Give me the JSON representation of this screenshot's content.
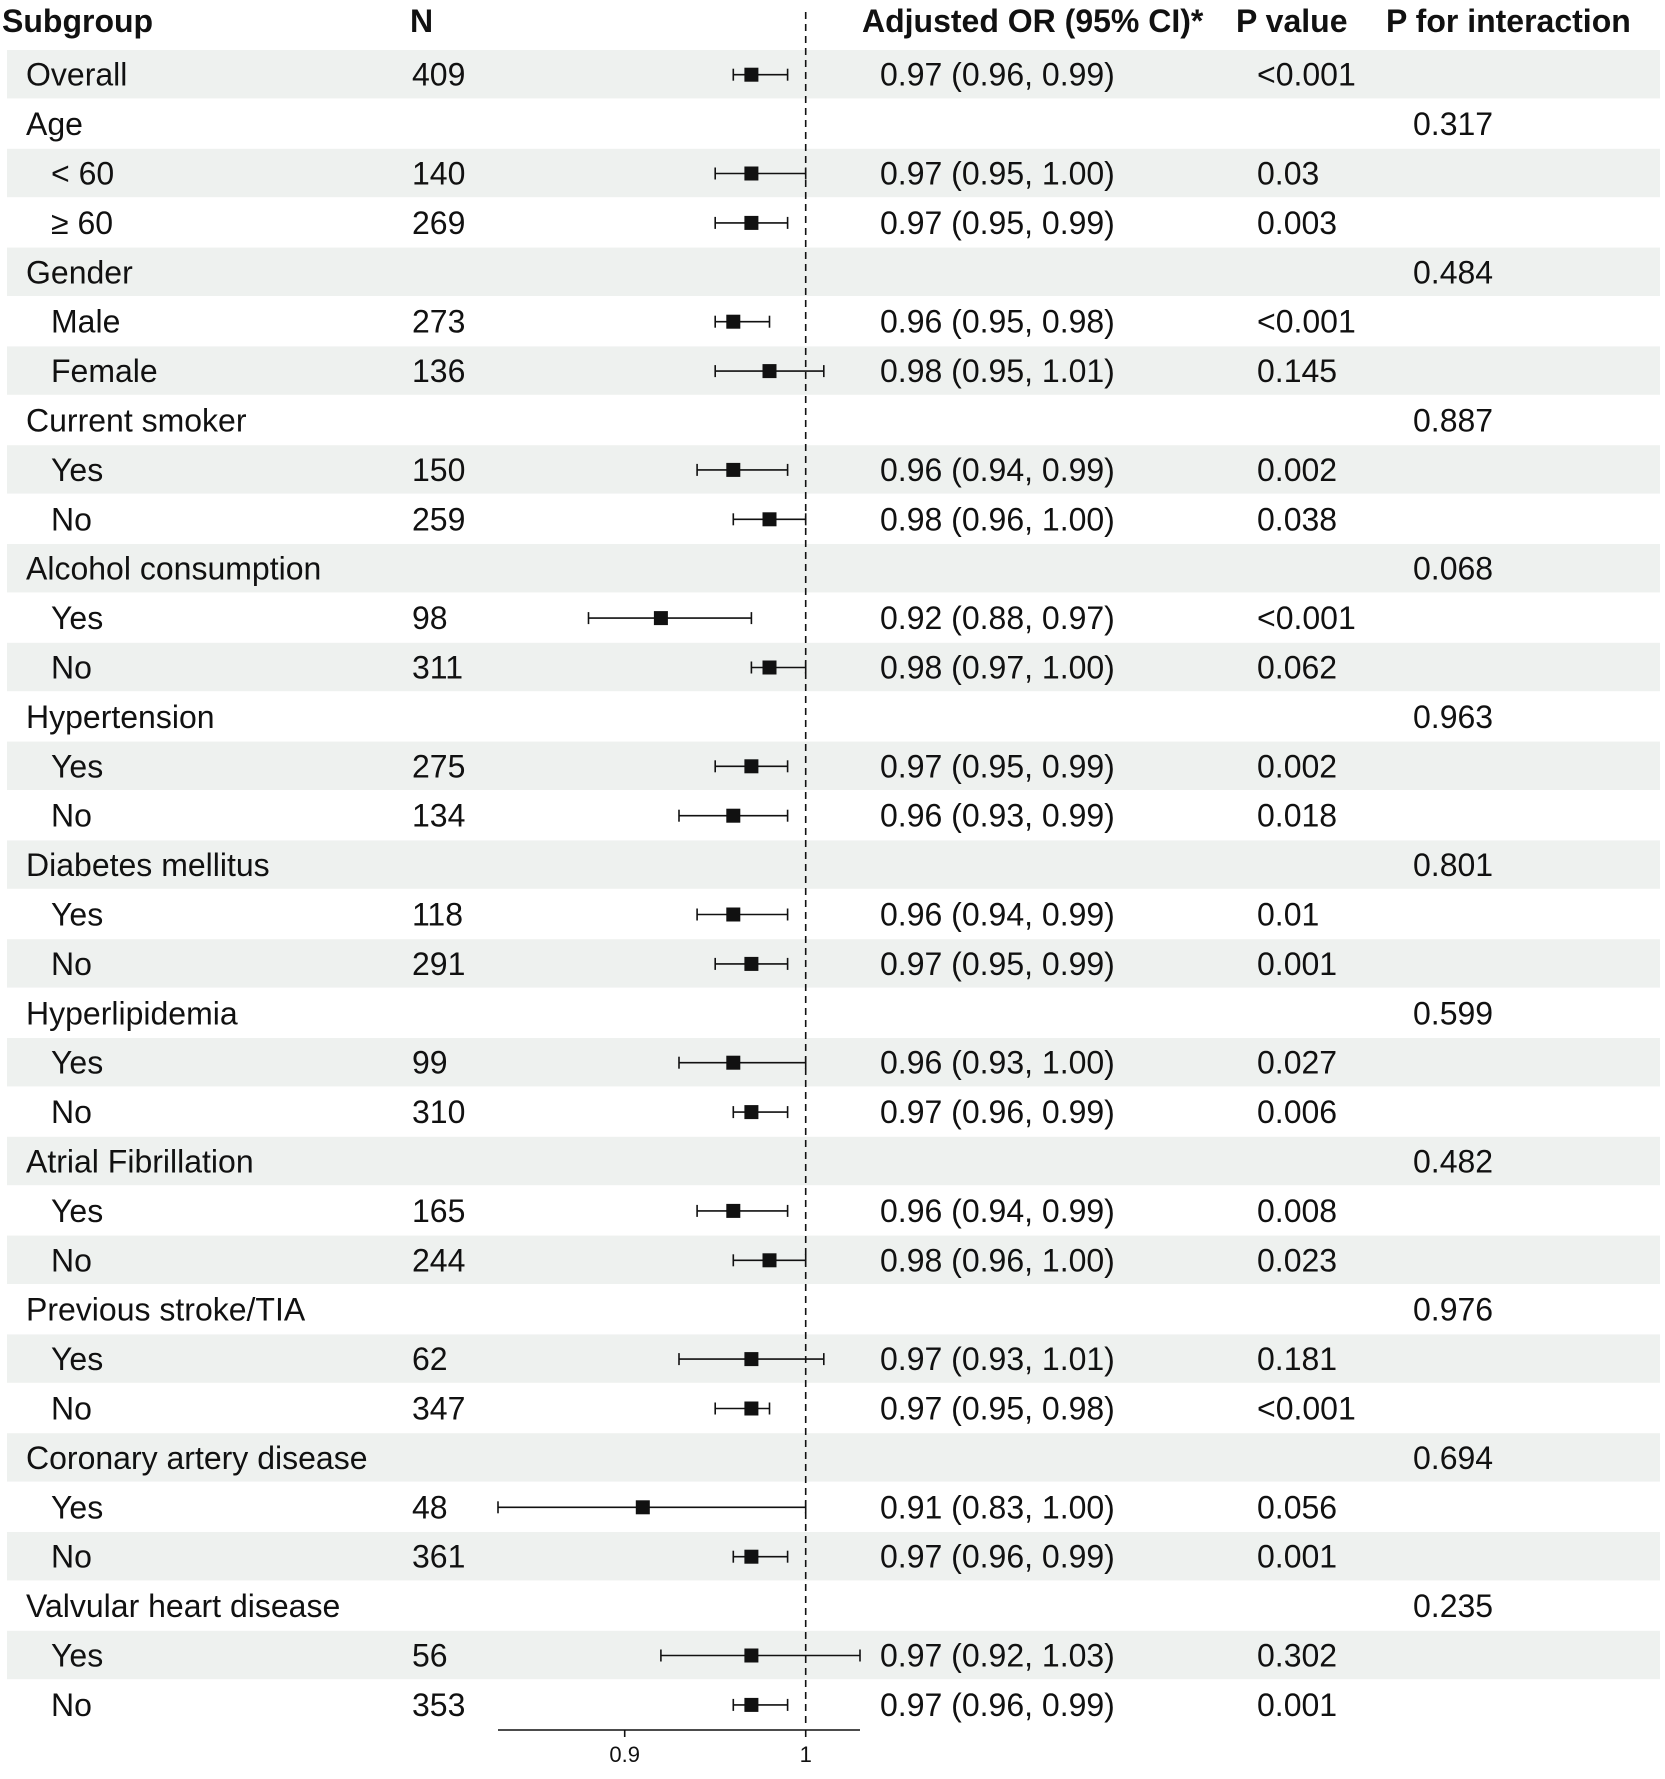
{
  "chart_data": {
    "type": "forest",
    "columns": {
      "subgroup": "Subgroup",
      "n": "N",
      "or": "Adjusted OR (95% CI)*",
      "p": "P value",
      "pint": "P for interaction"
    },
    "reference_line": 1,
    "xlim": [
      0.83,
      1.03
    ],
    "x_ticks": [
      {
        "value": 0.9,
        "label": "0.9"
      },
      {
        "value": 1,
        "label": "1"
      }
    ],
    "rows": [
      {
        "label": "Overall",
        "indent": false,
        "n": "409",
        "or": 0.97,
        "lo": 0.96,
        "hi": 0.99,
        "or_text": "0.97 (0.96, 0.99)",
        "p": "<0.001",
        "pint": ""
      },
      {
        "label": "Age",
        "indent": false,
        "n": "",
        "or": null,
        "or_text": "",
        "p": "",
        "pint": "0.317"
      },
      {
        "label": "< 60",
        "indent": true,
        "n": "140",
        "or": 0.97,
        "lo": 0.95,
        "hi": 1.0,
        "or_text": "0.97 (0.95, 1.00)",
        "p": "0.03",
        "pint": ""
      },
      {
        "label": "≥ 60",
        "indent": true,
        "n": "269",
        "or": 0.97,
        "lo": 0.95,
        "hi": 0.99,
        "or_text": "0.97 (0.95, 0.99)",
        "p": "0.003",
        "pint": ""
      },
      {
        "label": "Gender",
        "indent": false,
        "n": "",
        "or": null,
        "or_text": "",
        "p": "",
        "pint": "0.484"
      },
      {
        "label": "Male",
        "indent": true,
        "n": "273",
        "or": 0.96,
        "lo": 0.95,
        "hi": 0.98,
        "or_text": "0.96 (0.95, 0.98)",
        "p": "<0.001",
        "pint": ""
      },
      {
        "label": "Female",
        "indent": true,
        "n": "136",
        "or": 0.98,
        "lo": 0.95,
        "hi": 1.01,
        "or_text": "0.98 (0.95, 1.01)",
        "p": "0.145",
        "pint": ""
      },
      {
        "label": "Current smoker",
        "indent": false,
        "n": "",
        "or": null,
        "or_text": "",
        "p": "",
        "pint": "0.887"
      },
      {
        "label": "Yes",
        "indent": true,
        "n": "150",
        "or": 0.96,
        "lo": 0.94,
        "hi": 0.99,
        "or_text": "0.96 (0.94, 0.99)",
        "p": "0.002",
        "pint": ""
      },
      {
        "label": "No",
        "indent": true,
        "n": "259",
        "or": 0.98,
        "lo": 0.96,
        "hi": 1.0,
        "or_text": "0.98 (0.96, 1.00)",
        "p": "0.038",
        "pint": ""
      },
      {
        "label": "Alcohol consumption",
        "indent": false,
        "n": "",
        "or": null,
        "or_text": "",
        "p": "",
        "pint": "0.068"
      },
      {
        "label": "Yes",
        "indent": true,
        "n": "98",
        "or": 0.92,
        "lo": 0.88,
        "hi": 0.97,
        "or_text": "0.92 (0.88, 0.97)",
        "p": "<0.001",
        "pint": ""
      },
      {
        "label": "No",
        "indent": true,
        "n": "311",
        "or": 0.98,
        "lo": 0.97,
        "hi": 1.0,
        "or_text": "0.98 (0.97, 1.00)",
        "p": "0.062",
        "pint": ""
      },
      {
        "label": "Hypertension",
        "indent": false,
        "n": "",
        "or": null,
        "or_text": "",
        "p": "",
        "pint": "0.963"
      },
      {
        "label": "Yes",
        "indent": true,
        "n": "275",
        "or": 0.97,
        "lo": 0.95,
        "hi": 0.99,
        "or_text": "0.97 (0.95, 0.99)",
        "p": "0.002",
        "pint": ""
      },
      {
        "label": "No",
        "indent": true,
        "n": "134",
        "or": 0.96,
        "lo": 0.93,
        "hi": 0.99,
        "or_text": "0.96 (0.93, 0.99)",
        "p": "0.018",
        "pint": ""
      },
      {
        "label": "Diabetes mellitus",
        "indent": false,
        "n": "",
        "or": null,
        "or_text": "",
        "p": "",
        "pint": "0.801"
      },
      {
        "label": "Yes",
        "indent": true,
        "n": "118",
        "or": 0.96,
        "lo": 0.94,
        "hi": 0.99,
        "or_text": "0.96 (0.94, 0.99)",
        "p": "0.01",
        "pint": ""
      },
      {
        "label": "No",
        "indent": true,
        "n": "291",
        "or": 0.97,
        "lo": 0.95,
        "hi": 0.99,
        "or_text": "0.97 (0.95, 0.99)",
        "p": "0.001",
        "pint": ""
      },
      {
        "label": "Hyperlipidemia",
        "indent": false,
        "n": "",
        "or": null,
        "or_text": "",
        "p": "",
        "pint": "0.599"
      },
      {
        "label": "Yes",
        "indent": true,
        "n": "99",
        "or": 0.96,
        "lo": 0.93,
        "hi": 1.0,
        "or_text": "0.96 (0.93, 1.00)",
        "p": "0.027",
        "pint": ""
      },
      {
        "label": "No",
        "indent": true,
        "n": "310",
        "or": 0.97,
        "lo": 0.96,
        "hi": 0.99,
        "or_text": "0.97 (0.96, 0.99)",
        "p": "0.006",
        "pint": ""
      },
      {
        "label": "Atrial Fibrillation",
        "indent": false,
        "n": "",
        "or": null,
        "or_text": "",
        "p": "",
        "pint": "0.482"
      },
      {
        "label": "Yes",
        "indent": true,
        "n": "165",
        "or": 0.96,
        "lo": 0.94,
        "hi": 0.99,
        "or_text": "0.96 (0.94, 0.99)",
        "p": "0.008",
        "pint": ""
      },
      {
        "label": "No",
        "indent": true,
        "n": "244",
        "or": 0.98,
        "lo": 0.96,
        "hi": 1.0,
        "or_text": "0.98 (0.96, 1.00)",
        "p": "0.023",
        "pint": ""
      },
      {
        "label": "Previous stroke/TIA",
        "indent": false,
        "n": "",
        "or": null,
        "or_text": "",
        "p": "",
        "pint": "0.976"
      },
      {
        "label": "Yes",
        "indent": true,
        "n": "62",
        "or": 0.97,
        "lo": 0.93,
        "hi": 1.01,
        "or_text": "0.97 (0.93, 1.01)",
        "p": "0.181",
        "pint": ""
      },
      {
        "label": "No",
        "indent": true,
        "n": "347",
        "or": 0.97,
        "lo": 0.95,
        "hi": 0.98,
        "or_text": "0.97 (0.95, 0.98)",
        "p": "<0.001",
        "pint": ""
      },
      {
        "label": "Coronary artery disease",
        "indent": false,
        "n": "",
        "or": null,
        "or_text": "",
        "p": "",
        "pint": "0.694"
      },
      {
        "label": "Yes",
        "indent": true,
        "n": "48",
        "or": 0.91,
        "lo": 0.83,
        "hi": 1.0,
        "or_text": "0.91 (0.83, 1.00)",
        "p": "0.056",
        "pint": ""
      },
      {
        "label": "No",
        "indent": true,
        "n": "361",
        "or": 0.97,
        "lo": 0.96,
        "hi": 0.99,
        "or_text": "0.97 (0.96, 0.99)",
        "p": "0.001",
        "pint": ""
      },
      {
        "label": "Valvular heart disease",
        "indent": false,
        "n": "",
        "or": null,
        "or_text": "",
        "p": "",
        "pint": "0.235"
      },
      {
        "label": "Yes",
        "indent": true,
        "n": "56",
        "or": 0.97,
        "lo": 0.92,
        "hi": 1.03,
        "or_text": "0.97 (0.92, 1.03)",
        "p": "0.302",
        "pint": ""
      },
      {
        "label": "No",
        "indent": true,
        "n": "353",
        "or": 0.97,
        "lo": 0.96,
        "hi": 0.99,
        "or_text": "0.97 (0.96, 0.99)",
        "p": "0.001",
        "pint": ""
      }
    ]
  }
}
